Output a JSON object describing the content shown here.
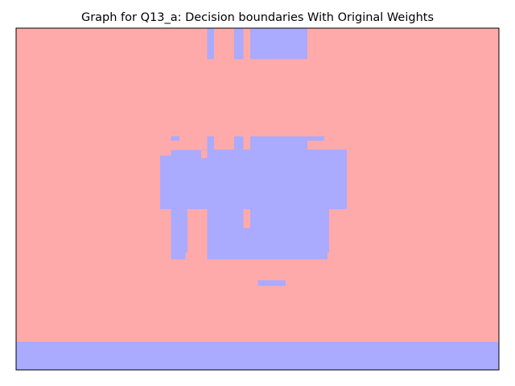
{
  "chart_data": {
    "type": "heatmap",
    "title": "Graph for Q13_a: Decision boundaries With Original Weights",
    "xlabel": "",
    "ylabel": "",
    "axes_ticks_visible": false,
    "colors": {
      "class_0": "#ffaaaa",
      "class_1": "#aaaaff",
      "frame": "#000000"
    },
    "background_class": "class_0",
    "regions": [
      {
        "class": "class_1",
        "x0": 0.396,
        "x1": 0.41,
        "y0": 0.91,
        "y1": 1.0
      },
      {
        "class": "class_1",
        "x0": 0.452,
        "x1": 0.471,
        "y0": 0.91,
        "y1": 1.0
      },
      {
        "class": "class_1",
        "x0": 0.485,
        "x1": 0.603,
        "y0": 0.91,
        "y1": 1.0
      },
      {
        "class": "class_1",
        "x0": 0.321,
        "x1": 0.338,
        "y0": 0.671,
        "y1": 0.683
      },
      {
        "class": "class_1",
        "x0": 0.396,
        "x1": 0.41,
        "y0": 0.632,
        "y1": 0.683
      },
      {
        "class": "class_1",
        "x0": 0.452,
        "x1": 0.471,
        "y0": 0.643,
        "y1": 0.683
      },
      {
        "class": "class_1",
        "x0": 0.485,
        "x1": 0.603,
        "y0": 0.643,
        "y1": 0.683
      },
      {
        "class": "class_1",
        "x0": 0.603,
        "x1": 0.638,
        "y0": 0.671,
        "y1": 0.683
      },
      {
        "class": "class_1",
        "x0": 0.321,
        "x1": 0.383,
        "y0": 0.627,
        "y1": 0.643
      },
      {
        "class": "class_1",
        "x0": 0.383,
        "x1": 0.685,
        "y0": 0.643,
        "y1": 0.645
      },
      {
        "class": "class_1",
        "x0": 0.298,
        "x1": 0.685,
        "y0": 0.471,
        "y1": 0.62
      },
      {
        "class": "class_1",
        "x0": 0.298,
        "x1": 0.383,
        "y0": 0.62,
        "y1": 0.627
      },
      {
        "class": "class_1",
        "x0": 0.396,
        "x1": 0.685,
        "y0": 0.62,
        "y1": 0.645
      },
      {
        "class": "class_1",
        "x0": 0.321,
        "x1": 0.351,
        "y0": 0.323,
        "y1": 0.471
      },
      {
        "class": "class_1",
        "x0": 0.351,
        "x1": 0.355,
        "y0": 0.344,
        "y1": 0.471
      },
      {
        "class": "class_1",
        "x0": 0.396,
        "x1": 0.471,
        "y0": 0.323,
        "y1": 0.471
      },
      {
        "class": "class_1",
        "x0": 0.471,
        "x1": 0.485,
        "y0": 0.323,
        "y1": 0.415
      },
      {
        "class": "class_1",
        "x0": 0.485,
        "x1": 0.645,
        "y0": 0.323,
        "y1": 0.471
      },
      {
        "class": "class_1",
        "x0": 0.645,
        "x1": 0.648,
        "y0": 0.344,
        "y1": 0.471
      },
      {
        "class": "class_1",
        "x0": 0.501,
        "x1": 0.558,
        "y0": 0.246,
        "y1": 0.262
      },
      {
        "class": "class_1",
        "x0": 0.0,
        "x1": 1.0,
        "y0": 0.0,
        "y1": 0.082
      }
    ]
  }
}
